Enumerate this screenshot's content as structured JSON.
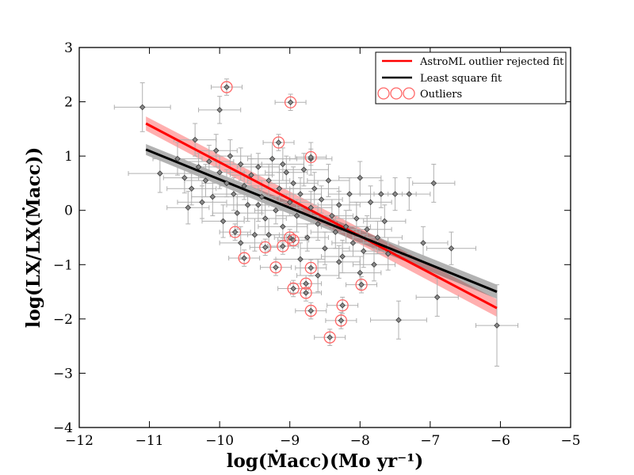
{
  "chart_data": {
    "type": "scatter",
    "title": "",
    "xlabel": "log(Ṁacc)(Mo yr⁻¹)",
    "ylabel": "log(LX/LX(Ṁacc))",
    "xlim": [
      -12,
      -5
    ],
    "ylim": [
      -4,
      3
    ],
    "xticks": [
      -12,
      -11,
      -10,
      -9,
      -8,
      -7,
      -6,
      -5
    ],
    "yticks": [
      -4,
      -3,
      -2,
      -1,
      0,
      1,
      2,
      3
    ],
    "xtick_labels": [
      "−12",
      "−11",
      "−10",
      "−9",
      "−8",
      "−7",
      "−6",
      "−5"
    ],
    "ytick_labels": [
      "−4",
      "−3",
      "−2",
      "−1",
      "0",
      "1",
      "2",
      "3"
    ],
    "grid": false,
    "legend_position": "top-right",
    "legend": [
      {
        "label": "AstroML outlier rejected fit",
        "color": "#ff0000",
        "kind": "line"
      },
      {
        "label": "Least square fit",
        "color": "#000000",
        "kind": "line"
      },
      {
        "label": "Outliers",
        "color": "#ff6666",
        "kind": "circles"
      }
    ],
    "fits": [
      {
        "name": "AstroML outlier rejected fit",
        "color": "#ff0000",
        "band_color": "#ff4d4d",
        "x": [
          -11.05,
          -6.05
        ],
        "y": [
          1.6,
          -1.8
        ],
        "band_halfwidth": [
          0.13,
          0.16
        ]
      },
      {
        "name": "Least square fit",
        "color": "#000000",
        "band_color": "#555555",
        "x": [
          -11.05,
          -6.05
        ],
        "y": [
          1.12,
          -1.5
        ],
        "band_halfwidth": [
          0.1,
          0.13
        ]
      }
    ],
    "points": [
      [
        -11.1,
        1.9,
        0.4,
        0.45
      ],
      [
        -10.85,
        0.68,
        0.45,
        0.35
      ],
      [
        -10.6,
        0.95,
        0.35,
        0.3
      ],
      [
        -10.5,
        0.6,
        0.3,
        0.28
      ],
      [
        -10.4,
        0.4,
        0.35,
        0.3
      ],
      [
        -10.35,
        1.3,
        0.3,
        0.3
      ],
      [
        -10.3,
        0.8,
        0.3,
        0.25
      ],
      [
        -10.25,
        0.15,
        0.35,
        0.3
      ],
      [
        -10.2,
        0.55,
        0.3,
        0.3
      ],
      [
        -10.15,
        0.9,
        0.35,
        0.3
      ],
      [
        -10.1,
        0.25,
        0.3,
        0.35
      ],
      [
        -10.05,
        1.1,
        0.3,
        0.3
      ],
      [
        -10.0,
        0.7,
        0.35,
        0.3
      ],
      [
        -9.95,
        -0.2,
        0.3,
        0.3
      ],
      [
        -9.9,
        0.5,
        0.35,
        0.25
      ],
      [
        -9.85,
        1.0,
        0.3,
        0.3
      ],
      [
        -9.8,
        0.3,
        0.3,
        0.3
      ],
      [
        -9.75,
        -0.05,
        0.35,
        0.3
      ],
      [
        -9.7,
        0.85,
        0.3,
        0.3
      ],
      [
        -9.65,
        0.45,
        0.35,
        0.25
      ],
      [
        -9.6,
        0.1,
        0.3,
        0.3
      ],
      [
        -9.55,
        0.65,
        0.3,
        0.3
      ],
      [
        -9.5,
        -0.45,
        0.35,
        0.3
      ],
      [
        -9.45,
        0.8,
        0.3,
        0.25
      ],
      [
        -9.4,
        0.25,
        0.35,
        0.3
      ],
      [
        -9.35,
        -0.15,
        0.3,
        0.3
      ],
      [
        -9.3,
        0.55,
        0.3,
        0.3
      ],
      [
        -9.25,
        0.95,
        0.35,
        0.3
      ],
      [
        -9.2,
        0.0,
        0.3,
        0.25
      ],
      [
        -9.15,
        0.4,
        0.3,
        0.3
      ],
      [
        -9.1,
        -0.3,
        0.35,
        0.3
      ],
      [
        -9.05,
        0.7,
        0.3,
        0.3
      ],
      [
        -9.0,
        0.15,
        0.3,
        0.25
      ],
      [
        -8.95,
        0.5,
        0.35,
        0.3
      ],
      [
        -8.9,
        -0.1,
        0.3,
        0.3
      ],
      [
        -8.85,
        0.3,
        0.3,
        0.3
      ],
      [
        -8.8,
        0.75,
        0.35,
        0.3
      ],
      [
        -8.75,
        -0.5,
        0.3,
        0.25
      ],
      [
        -8.7,
        0.05,
        0.3,
        0.3
      ],
      [
        -8.65,
        0.4,
        0.35,
        0.3
      ],
      [
        -8.6,
        -0.25,
        0.3,
        0.3
      ],
      [
        -8.55,
        0.2,
        0.3,
        0.25
      ],
      [
        -8.5,
        -0.7,
        0.35,
        0.3
      ],
      [
        -8.45,
        0.55,
        0.3,
        0.3
      ],
      [
        -8.4,
        -0.1,
        0.3,
        0.3
      ],
      [
        -8.35,
        -0.4,
        0.35,
        0.3
      ],
      [
        -8.3,
        0.1,
        0.3,
        0.25
      ],
      [
        -8.25,
        -0.85,
        0.3,
        0.3
      ],
      [
        -8.2,
        -0.3,
        0.35,
        0.3
      ],
      [
        -8.15,
        0.3,
        0.3,
        0.3
      ],
      [
        -8.1,
        -0.6,
        0.3,
        0.25
      ],
      [
        -8.05,
        -0.15,
        0.35,
        0.3
      ],
      [
        -8.0,
        0.6,
        0.3,
        0.3
      ],
      [
        -7.95,
        -0.75,
        0.3,
        0.3
      ],
      [
        -7.9,
        -0.35,
        0.35,
        0.25
      ],
      [
        -7.85,
        0.15,
        0.3,
        0.3
      ],
      [
        -7.8,
        -1.0,
        0.3,
        0.3
      ],
      [
        -7.75,
        -0.5,
        0.35,
        0.3
      ],
      [
        -7.7,
        0.3,
        0.3,
        0.25
      ],
      [
        -7.65,
        -0.2,
        0.3,
        0.3
      ],
      [
        -7.6,
        -0.8,
        0.35,
        0.3
      ],
      [
        -7.5,
        0.3,
        0.3,
        0.3
      ],
      [
        -7.45,
        -2.02,
        0.4,
        0.35
      ],
      [
        -7.3,
        0.3,
        0.3,
        0.3
      ],
      [
        -7.1,
        -0.6,
        0.35,
        0.3
      ],
      [
        -6.95,
        0.5,
        0.3,
        0.35
      ],
      [
        -6.9,
        -1.6,
        0.3,
        0.35
      ],
      [
        -6.7,
        -0.7,
        0.35,
        0.3
      ],
      [
        -6.05,
        -2.12,
        0.3,
        0.75
      ],
      [
        -10.0,
        1.85,
        0.3,
        0.25
      ],
      [
        -9.1,
        0.85,
        0.3,
        0.3
      ],
      [
        -8.7,
        0.95,
        0.3,
        0.3
      ],
      [
        -9.3,
        -0.45,
        0.3,
        0.3
      ],
      [
        -8.85,
        -0.9,
        0.35,
        0.3
      ],
      [
        -8.6,
        -1.2,
        0.3,
        0.3
      ],
      [
        -9.7,
        -0.6,
        0.3,
        0.3
      ],
      [
        -10.45,
        0.05,
        0.3,
        0.3
      ],
      [
        -9.45,
        0.1,
        0.3,
        0.3
      ],
      [
        -8.3,
        -0.95,
        0.3,
        0.3
      ],
      [
        -8.0,
        -1.15,
        0.3,
        0.3
      ]
    ],
    "outliers": [
      [
        -9.9,
        2.27
      ],
      [
        -8.99,
        1.99
      ],
      [
        -9.16,
        1.25
      ],
      [
        -8.7,
        0.98
      ],
      [
        -9.78,
        -0.4
      ],
      [
        -9.35,
        -0.68
      ],
      [
        -9.1,
        -0.66
      ],
      [
        -8.95,
        -0.55
      ],
      [
        -9.0,
        -0.5
      ],
      [
        -9.65,
        -0.88
      ],
      [
        -9.2,
        -1.05
      ],
      [
        -8.7,
        -1.06
      ],
      [
        -8.77,
        -1.35
      ],
      [
        -8.95,
        -1.44
      ],
      [
        -8.77,
        -1.52
      ],
      [
        -7.98,
        -1.37
      ],
      [
        -8.25,
        -1.75
      ],
      [
        -8.7,
        -1.85
      ],
      [
        -8.27,
        -2.03
      ],
      [
        -8.43,
        -2.34
      ]
    ]
  }
}
